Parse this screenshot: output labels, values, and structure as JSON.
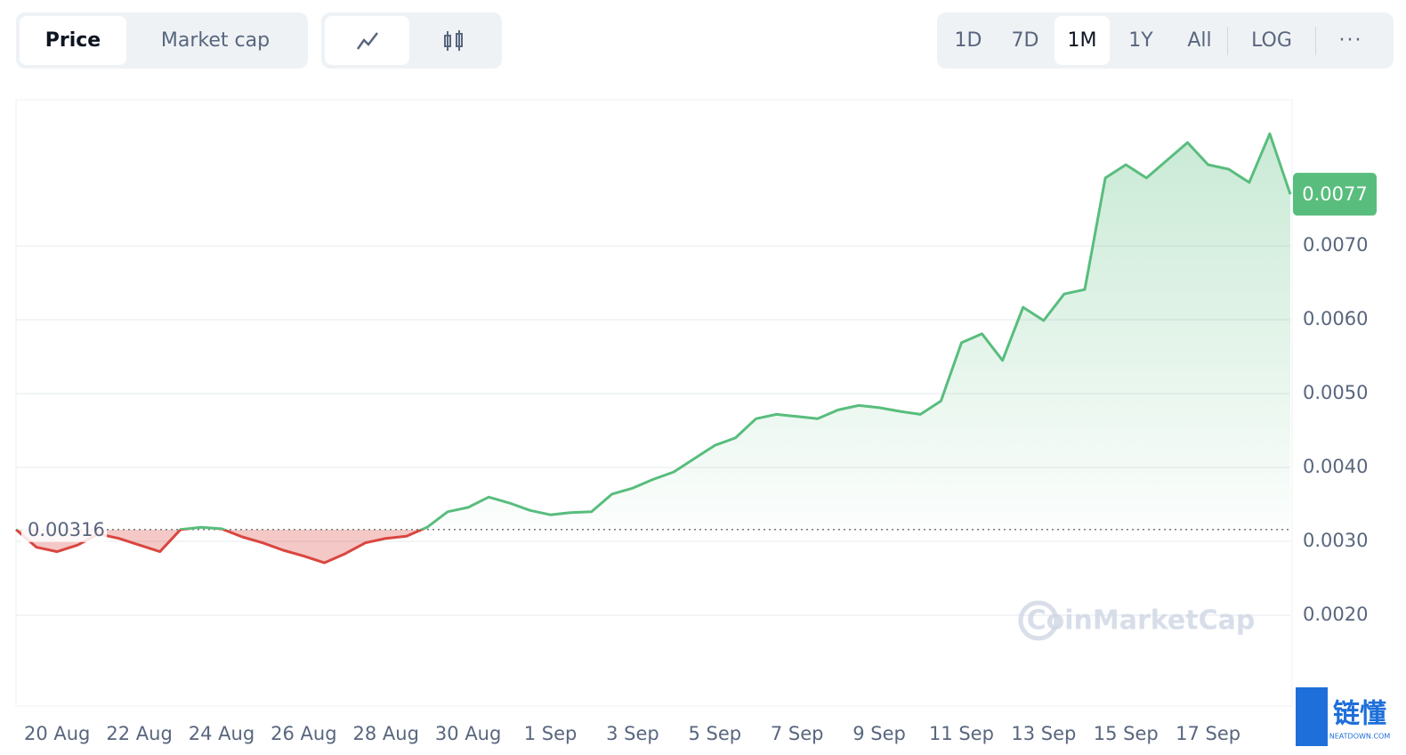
{
  "toolbar": {
    "tabs": [
      "Price",
      "Market cap"
    ],
    "ranges": [
      "1D",
      "7D",
      "1M",
      "1Y",
      "All"
    ],
    "log": "LOG"
  },
  "watermark": "CoinMarketCap",
  "corner_logo": {
    "title": "链懂",
    "subtitle": "NEATDOWN.COM"
  },
  "chart_data": {
    "type": "line",
    "categories": [
      null,
      null,
      "20 Aug",
      null,
      null,
      null,
      "22 Aug",
      null,
      null,
      null,
      "24 Aug",
      null,
      null,
      null,
      "26 Aug",
      null,
      null,
      null,
      "28 Aug",
      null,
      null,
      null,
      "30 Aug",
      null,
      null,
      null,
      "1 Sep",
      null,
      null,
      null,
      "3 Sep",
      null,
      null,
      null,
      "5 Sep",
      null,
      null,
      null,
      "7 Sep",
      null,
      null,
      null,
      "9 Sep",
      null,
      null,
      null,
      "11 Sep",
      null,
      null,
      null,
      "13 Sep",
      null,
      null,
      null,
      "15 Sep",
      null,
      null,
      null,
      "17 Sep",
      null,
      null,
      null,
      null
    ],
    "values": [
      0.00316,
      0.00292,
      0.00286,
      0.00295,
      0.0031,
      0.00304,
      0.00295,
      0.00286,
      0.00316,
      0.00319,
      0.00317,
      0.00306,
      0.00298,
      0.00288,
      0.0028,
      0.00271,
      0.00283,
      0.00298,
      0.00304,
      0.00307,
      0.00319,
      0.0034,
      0.00346,
      0.0036,
      0.00352,
      0.00342,
      0.00336,
      0.00339,
      0.0034,
      0.00364,
      0.00372,
      0.00384,
      0.00394,
      0.00412,
      0.0043,
      0.0044,
      0.00466,
      0.00472,
      0.00469,
      0.00466,
      0.00478,
      0.00484,
      0.00481,
      0.00476,
      0.00472,
      0.0049,
      0.00569,
      0.00581,
      0.00545,
      0.00617,
      0.00599,
      0.00635,
      0.00641,
      0.00792,
      0.0081,
      0.00792,
      0.00816,
      0.0084,
      0.0081,
      0.00804,
      0.00786,
      0.00852,
      0.0077
    ],
    "baseline": 0.00316,
    "last_price": 0.0077,
    "up_color": "#58bd7d",
    "down_color": "#d9463f",
    "ylim": [
      0.00077,
      0.00898
    ],
    "yticks": [
      {
        "value": 0.002,
        "label": "0.0020"
      },
      {
        "value": 0.003,
        "label": "0.0030"
      },
      {
        "value": 0.004,
        "label": "0.0040"
      },
      {
        "value": 0.005,
        "label": "0.0050"
      },
      {
        "value": 0.006,
        "label": "0.0060"
      },
      {
        "value": 0.007,
        "label": "0.0070"
      }
    ],
    "grid": true
  }
}
